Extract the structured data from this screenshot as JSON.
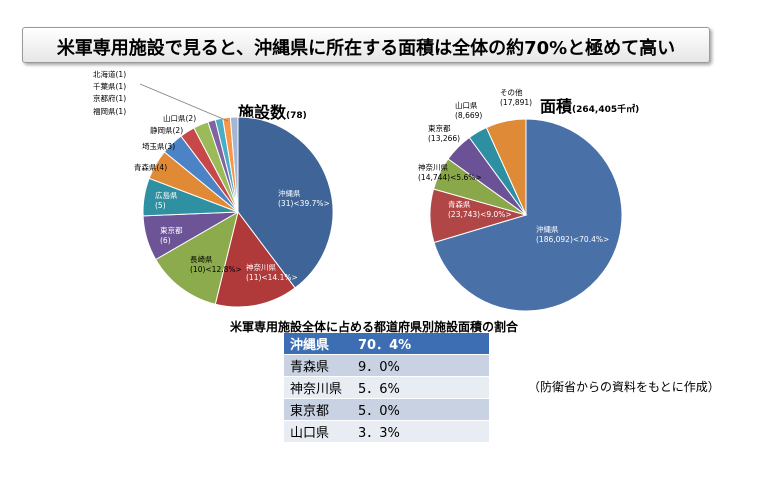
{
  "title": "米軍専用施設で見ると、沖縄県に所在する面積は全体の約70%と極めて高い",
  "table_caption": "米軍専用施設全体に占める都道府県別施設面積の割合",
  "source_note": "（防衛省からの資料をもとに作成）",
  "colors": {
    "okinawa": "#4a70a8",
    "kanagawa_nagasaki": "#b04646",
    "aomori_nagasaki": "#8aa84a",
    "tokyo": "#6b5296",
    "hiroshima": "#2e8fa3",
    "saitama": "#4f83c8",
    "table_header": "#3d6db3"
  },
  "table": {
    "rows": [
      {
        "pref": "沖縄県",
        "value": "70．4%"
      },
      {
        "pref": "青森県",
        "value": "9．0%"
      },
      {
        "pref": "神奈川県",
        "value": "5．6%"
      },
      {
        "pref": "東京都",
        "value": "5．0%"
      },
      {
        "pref": "山口県",
        "value": "3．3%"
      }
    ]
  },
  "chart_data": [
    {
      "type": "pie",
      "title": "施設数",
      "subtitle": "(78)",
      "slices": [
        {
          "name": "沖縄県",
          "value": 31,
          "label_lines": [
            "沖縄県",
            "(31)<39.7%>"
          ],
          "color": "#3e6498"
        },
        {
          "name": "神奈川県",
          "value": 11,
          "label_lines": [
            "神奈川県",
            "(11)<14.1%>"
          ],
          "color": "#b03a3a"
        },
        {
          "name": "長崎県",
          "value": 10,
          "label_lines": [
            "長崎県",
            "(10)<12.8%>"
          ],
          "color": "#8cab4c"
        },
        {
          "name": "東京都",
          "value": 6,
          "label_lines": [
            "東京都",
            "(6)"
          ],
          "color": "#6c5497"
        },
        {
          "name": "広島県",
          "value": 5,
          "label_lines": [
            "広島県",
            "(5)"
          ],
          "color": "#2f90a2"
        },
        {
          "name": "青森県",
          "value": 4,
          "label_lines": [
            "青森県(4)"
          ],
          "color": "#e08a36"
        },
        {
          "name": "埼玉県",
          "value": 3,
          "label_lines": [
            "埼玉県(3)"
          ],
          "color": "#4c82c6"
        },
        {
          "name": "静岡県",
          "value": 2,
          "label_lines": [
            "静岡県(2)"
          ],
          "color": "#c64848"
        },
        {
          "name": "山口県",
          "value": 2,
          "label_lines": [
            "山口県(2)"
          ],
          "color": "#9bbb59"
        },
        {
          "name": "福岡県",
          "value": 1,
          "label_lines": [
            "福岡県(1)"
          ],
          "color": "#8064a2"
        },
        {
          "name": "京都府",
          "value": 1,
          "label_lines": [
            "京都府(1)"
          ],
          "color": "#4bacc6"
        },
        {
          "name": "千葉県",
          "value": 1,
          "label_lines": [
            "千葉県(1)"
          ],
          "color": "#f79646"
        },
        {
          "name": "北海道",
          "value": 1,
          "label_lines": [
            "北海道(1)"
          ],
          "color": "#a5b5d6"
        }
      ]
    },
    {
      "type": "pie",
      "title": "面積",
      "subtitle": "(264,405千㎡)",
      "slices": [
        {
          "name": "沖縄県",
          "value": 186092,
          "label_lines": [
            "沖縄県",
            "(186,092)<70.4%>"
          ],
          "color": "#4a70a8"
        },
        {
          "name": "青森県",
          "value": 23743,
          "label_lines": [
            "青森県",
            "(23,743)<9.0%>"
          ],
          "color": "#b04646"
        },
        {
          "name": "神奈川県",
          "value": 14744,
          "label_lines": [
            "神奈川県",
            "(14,744)<5.6%>"
          ],
          "color": "#8aa84a"
        },
        {
          "name": "東京都",
          "value": 13266,
          "label_lines": [
            "東京都",
            "(13,266)"
          ],
          "color": "#6b5296"
        },
        {
          "name": "山口県",
          "value": 8669,
          "label_lines": [
            "山口県",
            "(8,669)"
          ],
          "color": "#2e8fa3"
        },
        {
          "name": "その他",
          "value": 17891,
          "label_lines": [
            "その他",
            "(17,891)"
          ],
          "color": "#de8a36"
        }
      ]
    }
  ]
}
